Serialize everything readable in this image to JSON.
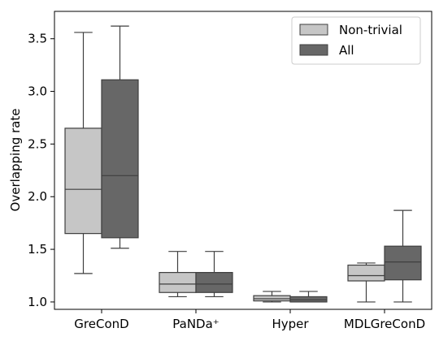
{
  "chart_data": {
    "type": "boxplot",
    "title": "",
    "xlabel": "",
    "ylabel": "Overlapping rate",
    "ylim": [
      0.93,
      3.76
    ],
    "yticks": [
      1.0,
      1.5,
      2.0,
      2.5,
      3.0,
      3.5
    ],
    "ytick_labels": [
      "1.0",
      "1.5",
      "2.0",
      "2.5",
      "3.0",
      "3.5"
    ],
    "categories": [
      "GreConD",
      "PaNDa⁺",
      "Hyper",
      "MDLGreConD"
    ],
    "legend_position": "top-right",
    "grid": false,
    "series": [
      {
        "name": "Non-trivial",
        "color": "#c6c6c6",
        "boxes": [
          {
            "whisker_low": 1.27,
            "q1": 1.65,
            "median": 2.07,
            "q3": 2.65,
            "whisker_high": 3.56
          },
          {
            "whisker_low": 1.05,
            "q1": 1.09,
            "median": 1.17,
            "q3": 1.28,
            "whisker_high": 1.48
          },
          {
            "whisker_low": 1.0,
            "q1": 1.01,
            "median": 1.03,
            "q3": 1.06,
            "whisker_high": 1.1
          },
          {
            "whisker_low": 1.0,
            "q1": 1.2,
            "median": 1.25,
            "q3": 1.35,
            "whisker_high": 1.37
          }
        ]
      },
      {
        "name": "All",
        "color": "#676767",
        "boxes": [
          {
            "whisker_low": 1.51,
            "q1": 1.61,
            "median": 2.2,
            "q3": 3.11,
            "whisker_high": 3.62
          },
          {
            "whisker_low": 1.05,
            "q1": 1.09,
            "median": 1.17,
            "q3": 1.28,
            "whisker_high": 1.48
          },
          {
            "whisker_low": 1.0,
            "q1": 1.0,
            "median": 1.02,
            "q3": 1.05,
            "whisker_high": 1.1
          },
          {
            "whisker_low": 1.0,
            "q1": 1.21,
            "median": 1.38,
            "q3": 1.53,
            "whisker_high": 1.87
          }
        ]
      }
    ]
  }
}
